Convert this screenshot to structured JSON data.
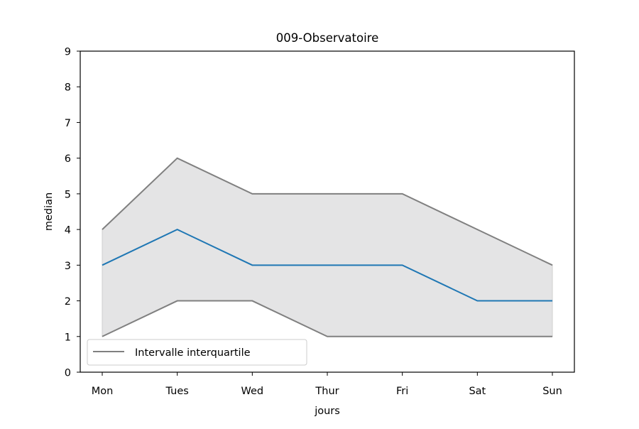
{
  "chart_data": {
    "type": "line",
    "title": "009-Observatoire",
    "xlabel": "jours",
    "ylabel": "median",
    "categories": [
      "Mon",
      "Tues",
      "Wed",
      "Thur",
      "Fri",
      "Sat",
      "Sun"
    ],
    "ylim": [
      0,
      9
    ],
    "yticks": [
      0,
      1,
      2,
      3,
      4,
      5,
      6,
      7,
      8,
      9
    ],
    "series": [
      {
        "values": [
          3,
          4,
          3,
          3,
          3,
          2,
          2
        ],
        "color": "#1f77b4"
      },
      {
        "values": [
          4,
          6,
          5,
          5,
          5,
          4,
          3
        ],
        "color": "#808080"
      },
      {
        "values": [
          1,
          2,
          2,
          1,
          1,
          1,
          1
        ],
        "color": "#808080"
      }
    ],
    "band": {
      "fill": "#e4e4e5"
    },
    "legend": {
      "label": "Intervalle interquartile",
      "color": "#808080",
      "position": "lower-left"
    },
    "grid": false
  }
}
